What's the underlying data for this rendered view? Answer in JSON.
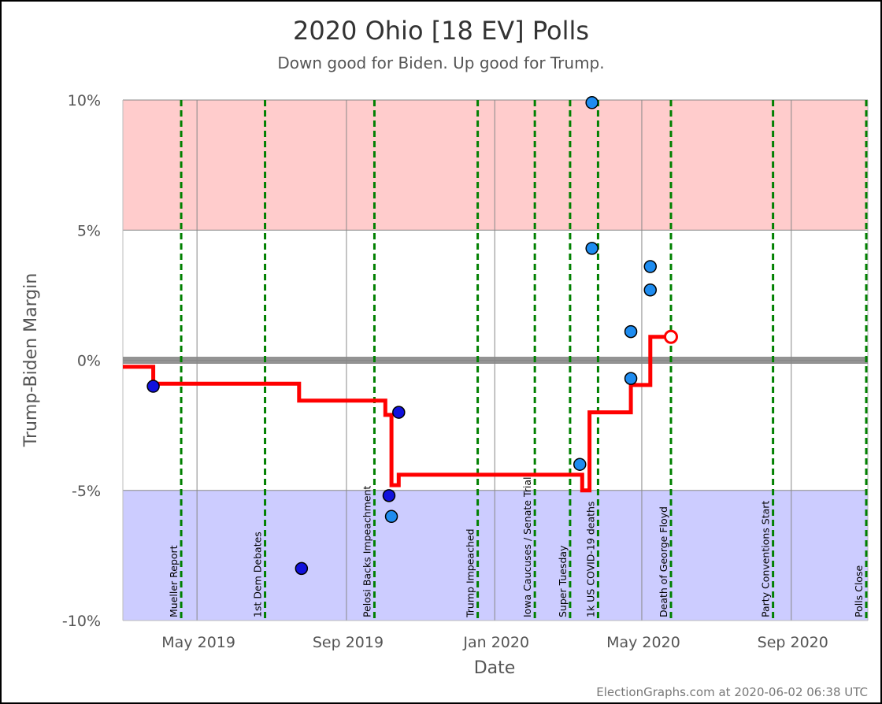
{
  "chart_data": {
    "type": "scatter",
    "title": "2020 Ohio [18 EV] Polls",
    "subtitle": "Down good for Biden. Up good for Trump.",
    "xlabel": "Date",
    "ylabel": "Trump-Biden Margin",
    "credit": "ElectionGraphs.com at 2020-06-02 06:38 UTC",
    "xlim": [
      "2019-03-01",
      "2020-11-03"
    ],
    "ylim": [
      -10,
      10
    ],
    "y_ticks": [
      {
        "value": 10,
        "label": "10%"
      },
      {
        "value": 5,
        "label": "5%"
      },
      {
        "value": 0,
        "label": "0%"
      },
      {
        "value": -5,
        "label": "-5%"
      },
      {
        "value": -10,
        "label": "-10%"
      }
    ],
    "x_ticks": [
      {
        "date": "2019-05-01",
        "label": "May 2019"
      },
      {
        "date": "2019-09-01",
        "label": "Sep 2019"
      },
      {
        "date": "2020-01-01",
        "label": "Jan 2020"
      },
      {
        "date": "2020-05-01",
        "label": "May 2020"
      },
      {
        "date": "2020-09-01",
        "label": "Sep 2020"
      }
    ],
    "bands": [
      {
        "from": 5,
        "to": 10,
        "color": "#ffcccc"
      },
      {
        "from": -10,
        "to": -5,
        "color": "#ccccff"
      }
    ],
    "events": [
      {
        "date": "2019-04-18",
        "label": "Mueller Report"
      },
      {
        "date": "2019-06-26",
        "label": "1st Dem Debates"
      },
      {
        "date": "2019-09-24",
        "label": "Pelosi Backs Impeachment"
      },
      {
        "date": "2019-12-18",
        "label": "Trump Impeached"
      },
      {
        "date": "2020-02-03",
        "label": "Iowa Caucuses / Senate Trial"
      },
      {
        "date": "2020-03-03",
        "label": "Super Tuesday"
      },
      {
        "date": "2020-03-26",
        "label": "1k US COVID-19 deaths"
      },
      {
        "date": "2020-05-25",
        "label": "Death of George Floyd"
      },
      {
        "date": "2020-08-17",
        "label": "Party Conventions Start"
      },
      {
        "date": "2020-11-03",
        "label": "Polls Close"
      }
    ],
    "series": [
      {
        "points": [
          {
            "date": "2019-03-26",
            "margin": -1.0,
            "color": "#1111dd"
          },
          {
            "date": "2019-07-26",
            "margin": -8.0,
            "color": "#1111dd"
          },
          {
            "date": "2019-10-06",
            "margin": -5.2,
            "color": "#1111dd"
          },
          {
            "date": "2019-10-08",
            "margin": -6.0,
            "color": "#1e8cf0"
          },
          {
            "date": "2019-10-14",
            "margin": -2.0,
            "color": "#1111dd"
          },
          {
            "date": "2020-03-11",
            "margin": -4.0,
            "color": "#1e8cf0"
          },
          {
            "date": "2020-03-21",
            "margin": 9.9,
            "color": "#1e8cf0"
          },
          {
            "date": "2020-03-21",
            "margin": 4.3,
            "color": "#1e8cf0"
          },
          {
            "date": "2020-04-22",
            "margin": 1.1,
            "color": "#1e8cf0"
          },
          {
            "date": "2020-04-22",
            "margin": -0.7,
            "color": "#1e8cf0"
          },
          {
            "date": "2020-05-08",
            "margin": 3.6,
            "color": "#1e8cf0"
          },
          {
            "date": "2020-05-08",
            "margin": 2.7,
            "color": "#1e8cf0"
          }
        ]
      },
      {
        "type": "line",
        "color": "#ff0000",
        "points": [
          {
            "date": "2019-03-01",
            "margin": -0.25
          },
          {
            "date": "2019-03-26",
            "margin": -0.25
          },
          {
            "date": "2019-03-26",
            "margin": -0.9
          },
          {
            "date": "2019-07-24",
            "margin": -0.9
          },
          {
            "date": "2019-07-24",
            "margin": -1.55
          },
          {
            "date": "2019-10-03",
            "margin": -1.55
          },
          {
            "date": "2019-10-03",
            "margin": -2.1
          },
          {
            "date": "2019-10-08",
            "margin": -2.1
          },
          {
            "date": "2019-10-08",
            "margin": -4.8
          },
          {
            "date": "2019-10-14",
            "margin": -4.8
          },
          {
            "date": "2019-10-14",
            "margin": -4.4
          },
          {
            "date": "2020-03-13",
            "margin": -4.4
          },
          {
            "date": "2020-03-13",
            "margin": -5.0
          },
          {
            "date": "2020-03-19",
            "margin": -5.0
          },
          {
            "date": "2020-03-19",
            "margin": -2.0
          },
          {
            "date": "2020-04-22",
            "margin": -2.0
          },
          {
            "date": "2020-04-22",
            "margin": -0.95
          },
          {
            "date": "2020-05-08",
            "margin": -0.95
          },
          {
            "date": "2020-05-08",
            "margin": 0.9
          },
          {
            "date": "2020-05-25",
            "margin": 0.9
          }
        ]
      }
    ],
    "current": {
      "date": "2020-05-25",
      "margin": 0.9,
      "color": "#ff0000"
    },
    "colors": {
      "grid": "#888888",
      "zero_line": "#888888",
      "event_line": "#008000"
    }
  }
}
